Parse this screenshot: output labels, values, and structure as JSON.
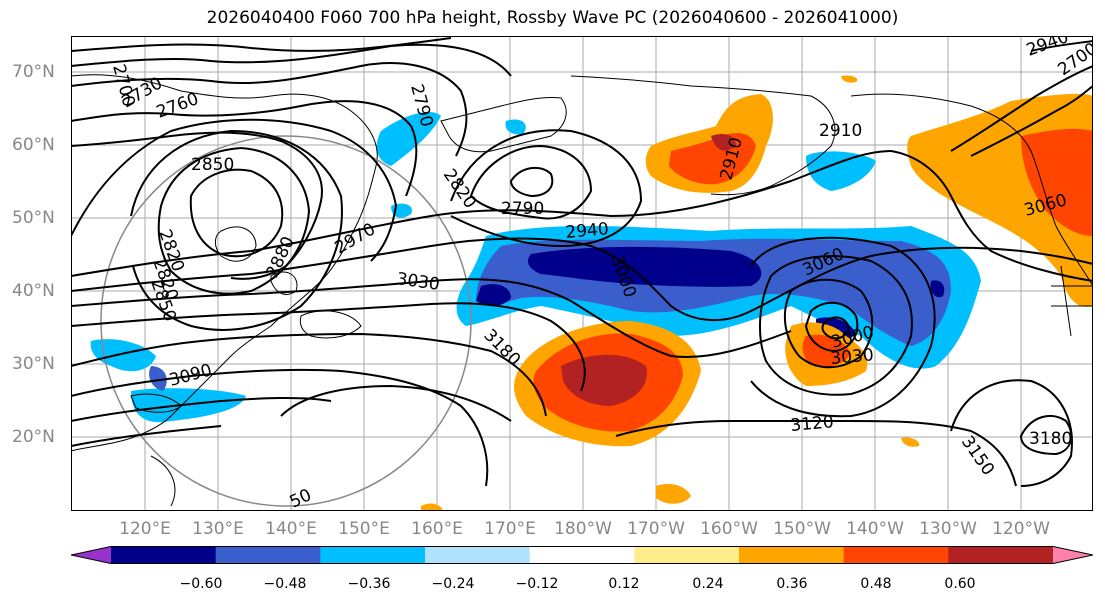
{
  "title": "2026040400 F060 700 hPa height, Rossby Wave PC (2026040600 - 2026041000)",
  "lat_labels": [
    "70°N",
    "60°N",
    "50°N",
    "40°N",
    "30°N",
    "20°N"
  ],
  "lon_labels": [
    "120°E",
    "130°E",
    "140°E",
    "150°E",
    "160°E",
    "170°E",
    "180°W",
    "170°W",
    "160°W",
    "150°W",
    "140°W",
    "130°W",
    "120°W"
  ],
  "contour_labels": [
    "2700",
    "2730",
    "2760",
    "2790",
    "2850",
    "2820",
    "2820",
    "2790",
    "2910",
    "2910",
    "2970",
    "2940",
    "2880",
    "2820",
    "2850",
    "3000",
    "3030",
    "3060",
    "3060",
    "3000",
    "3030",
    "3180",
    "3090",
    "3120",
    "3150",
    "3180",
    "2940",
    "2700",
    "50"
  ],
  "colorbar": {
    "tick_labels": [
      "−0.60",
      "−0.48",
      "−0.36",
      "−0.24",
      "−0.12",
      "0.12",
      "0.24",
      "0.36",
      "0.48",
      "0.60"
    ],
    "colors": [
      "#9932cc",
      "#00008b",
      "#3a5fcd",
      "#00bfff",
      "#b0e2ff",
      "#ffffff",
      "#ffec8b",
      "#ffa500",
      "#ff4500",
      "#b22222",
      "#ff82ab"
    ]
  },
  "map_colors": {
    "land_line": "#000000",
    "contour": "#000000",
    "grid": "#aaaaaa",
    "circle": "#888888"
  }
}
